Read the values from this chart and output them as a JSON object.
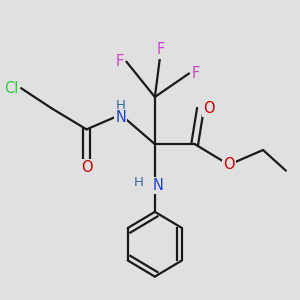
{
  "background_color": "#e0e0e0",
  "bond_color": "#1a1a1a",
  "figsize": [
    3.0,
    3.0
  ],
  "dpi": 100,
  "lw": 1.6,
  "fs": 10.5,
  "colors": {
    "C": "#1a1a1a",
    "Cl": "#2ecc40",
    "O": "#cc0000",
    "N": "#1a44cc",
    "F": "#cc44cc",
    "H": "#336699"
  }
}
